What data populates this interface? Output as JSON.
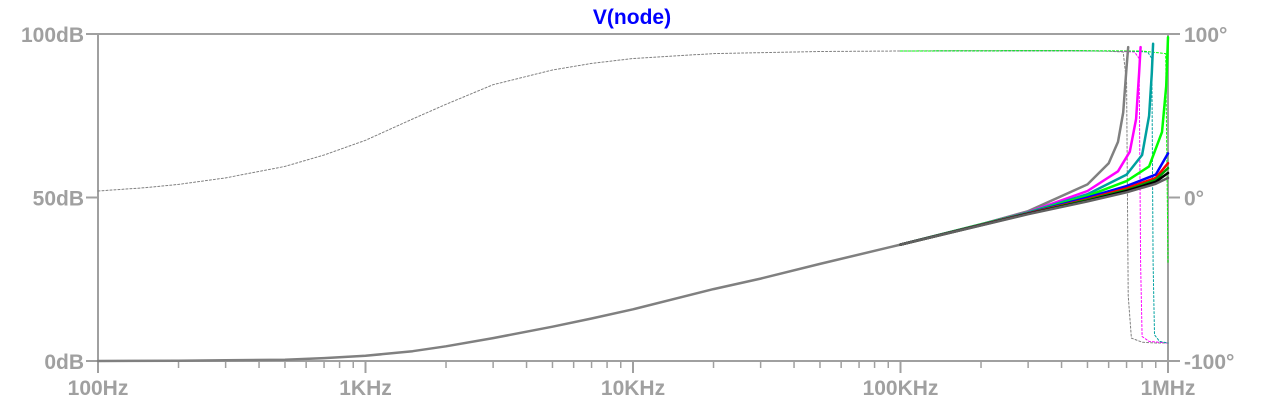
{
  "chart_data": {
    "type": "line",
    "title": "V(node)",
    "title_color": "#0000ff",
    "x_scale": "log",
    "xlim": [
      100,
      1000000
    ],
    "x_ticks": [
      {
        "value": 100,
        "label": "100Hz"
      },
      {
        "value": 1000,
        "label": "1KHz"
      },
      {
        "value": 10000,
        "label": "10KHz"
      },
      {
        "value": 100000,
        "label": "100KHz"
      },
      {
        "value": 1000000,
        "label": "1MHz"
      }
    ],
    "y_left": {
      "ylim": [
        0,
        100
      ],
      "ticks": [
        {
          "value": 100,
          "label": "100dB"
        },
        {
          "value": 50,
          "label": "50dB"
        },
        {
          "value": 0,
          "label": "0dB"
        }
      ]
    },
    "y_right": {
      "ylim": [
        -100,
        100
      ],
      "ticks": [
        {
          "value": 100,
          "label": "100°"
        },
        {
          "value": 0,
          "label": "0°"
        },
        {
          "value": -100,
          "label": "-100°"
        }
      ]
    },
    "grid": false,
    "axis_color": "#a0a0a0",
    "series": [
      {
        "kind": "magnitude",
        "axis": "left",
        "color": "#808080",
        "x": [
          100,
          200,
          300,
          500,
          700,
          1000,
          1500,
          2000,
          3000,
          5000,
          7000,
          10000,
          20000,
          30000,
          50000,
          100000,
          200000,
          300000,
          500000,
          600000,
          650000,
          680000,
          700000,
          710000
        ],
        "y": [
          0,
          0.1,
          0.2,
          0.4,
          0.9,
          1.6,
          3.0,
          4.5,
          7.0,
          10.5,
          13.0,
          15.8,
          22.0,
          25.2,
          29.7,
          35.6,
          41.8,
          45.8,
          54.0,
          60.5,
          67.0,
          76.0,
          90.0,
          96.0
        ]
      },
      {
        "kind": "magnitude",
        "axis": "left",
        "color": "#ff00ff",
        "x": [
          100000,
          200000,
          300000,
          500000,
          650000,
          720000,
          760000,
          780000,
          790000
        ],
        "y": [
          35.6,
          41.8,
          45.5,
          52.0,
          58.0,
          64.0,
          74.0,
          88.0,
          96.0
        ]
      },
      {
        "kind": "magnitude",
        "axis": "left",
        "color": "#00a0a0",
        "x": [
          100000,
          200000,
          300000,
          500000,
          700000,
          800000,
          850000,
          870000,
          880000
        ],
        "y": [
          35.6,
          41.8,
          45.4,
          51.0,
          57.0,
          63.0,
          75.0,
          88.0,
          97.0
        ]
      },
      {
        "kind": "magnitude",
        "axis": "left",
        "color": "#00ff00",
        "x": [
          100000,
          200000,
          300000,
          500000,
          700000,
          850000,
          950000,
          985000,
          1000000
        ],
        "y": [
          35.6,
          41.8,
          45.3,
          50.5,
          55.0,
          59.5,
          70.0,
          84.0,
          99.0
        ]
      },
      {
        "kind": "magnitude",
        "axis": "left",
        "color": "#0000ff",
        "x": [
          100000,
          300000,
          500000,
          700000,
          900000,
          1000000
        ],
        "y": [
          35.6,
          45.2,
          50.0,
          53.5,
          57.0,
          63.5
        ]
      },
      {
        "kind": "magnitude",
        "axis": "left",
        "color": "#ff0000",
        "x": [
          100000,
          300000,
          500000,
          700000,
          900000,
          1000000
        ],
        "y": [
          35.6,
          45.1,
          49.5,
          52.8,
          56.0,
          60.5
        ]
      },
      {
        "kind": "magnitude",
        "axis": "left",
        "color": "#00a000",
        "x": [
          100000,
          300000,
          500000,
          700000,
          900000,
          1000000
        ],
        "y": [
          35.6,
          45.0,
          49.3,
          52.3,
          55.4,
          59.0
        ]
      },
      {
        "kind": "magnitude",
        "axis": "left",
        "color": "#000000",
        "x": [
          100000,
          300000,
          500000,
          700000,
          900000,
          1000000
        ],
        "y": [
          35.6,
          45.0,
          49.0,
          52.0,
          54.8,
          57.5
        ]
      },
      {
        "kind": "magnitude",
        "axis": "left",
        "color": "#606060",
        "x": [
          100000,
          300000,
          500000,
          700000,
          900000,
          1000000
        ],
        "y": [
          35.6,
          44.9,
          48.8,
          51.6,
          54.2,
          56.0
        ]
      },
      {
        "kind": "phase",
        "axis": "right",
        "color": "#808080",
        "x": [
          100,
          150,
          200,
          300,
          500,
          700,
          1000,
          1500,
          2000,
          3000,
          5000,
          7000,
          10000,
          20000,
          50000,
          100000,
          200000,
          400000,
          600000,
          680000,
          700000,
          710000,
          730000,
          800000,
          900000,
          1000000
        ],
        "y": [
          4,
          6,
          8,
          12,
          19,
          26,
          35,
          48,
          57,
          69,
          78,
          82,
          85,
          88,
          89.3,
          89.6,
          89.8,
          89.8,
          89.5,
          89.0,
          70.0,
          -60.0,
          -86.0,
          -88.5,
          -89.0,
          -89.0
        ]
      },
      {
        "kind": "phase",
        "axis": "right",
        "color": "#ff00ff",
        "x": [
          100000,
          400000,
          600000,
          750000,
          780000,
          790000,
          800000,
          850000,
          1000000
        ],
        "y": [
          89.6,
          89.8,
          89.6,
          89.0,
          85.0,
          -40.0,
          -85.0,
          -88.0,
          -89.0
        ]
      },
      {
        "kind": "phase",
        "axis": "right",
        "color": "#00a0a0",
        "x": [
          100000,
          400000,
          700000,
          840000,
          870000,
          880000,
          890000,
          930000,
          1000000
        ],
        "y": [
          89.6,
          89.8,
          89.6,
          89.0,
          85.0,
          -40.0,
          -84.0,
          -88.0,
          -89.0
        ]
      },
      {
        "kind": "phase",
        "axis": "right",
        "color": "#00ff00",
        "x": [
          100000,
          400000,
          800000,
          980000,
          1000000
        ],
        "y": [
          89.6,
          89.8,
          89.6,
          88.0,
          -40.0
        ]
      }
    ]
  }
}
